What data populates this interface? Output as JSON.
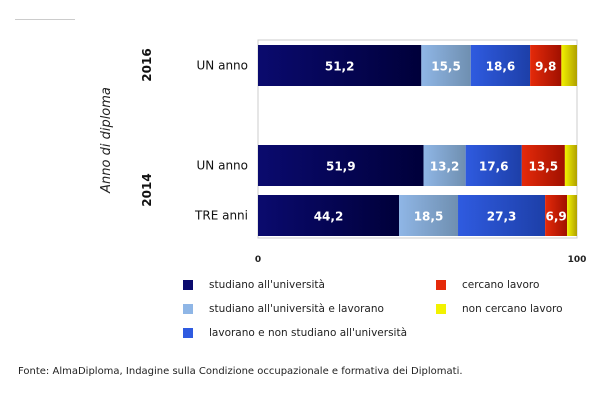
{
  "chart_data": {
    "type": "bar",
    "orientation": "horizontal",
    "stacked": true,
    "ylabel": "Anno di diploma",
    "groups": [
      {
        "year": "2016",
        "categories": [
          "UN anno"
        ]
      },
      {
        "year": "2014",
        "categories": [
          "UN anno",
          "TRE anni"
        ]
      }
    ],
    "categories": [
      "UN anno (2016)",
      "UN anno (2014)",
      "TRE anni (2014)"
    ],
    "category_labels": [
      "UN anno",
      "UN anno",
      "TRE anni"
    ],
    "xlim": [
      0,
      100
    ],
    "xticks": [
      "0",
      "100"
    ],
    "series": [
      {
        "name": "studiano all'università",
        "color": "#0a0a6e",
        "values": [
          51.2,
          51.9,
          44.2
        ],
        "labels": [
          "51,2",
          "51,9",
          "44,2"
        ]
      },
      {
        "name": "studiano all'università e lavorano",
        "color": "#8fb6e6",
        "values": [
          15.5,
          13.2,
          18.5
        ],
        "labels": [
          "15,5",
          "13,2",
          "18,5"
        ]
      },
      {
        "name": "lavorano e non studiano all'università",
        "color": "#2f5be0",
        "values": [
          18.6,
          17.6,
          27.3
        ],
        "labels": [
          "18,6",
          "17,6",
          "27,3"
        ]
      },
      {
        "name": "cercano lavoro",
        "color": "#e52a0a",
        "values": [
          9.8,
          13.5,
          6.9
        ],
        "labels": [
          "9,8",
          "13,5",
          "6,9"
        ]
      },
      {
        "name": "non cercano lavoro",
        "color": "#f2f200",
        "values": [
          4.9,
          3.8,
          3.1
        ],
        "labels": [
          "",
          "",
          ""
        ]
      }
    ],
    "legend_position": "bottom"
  },
  "source": "Fonte: AlmaDiploma, Indagine sulla Condizione occupazionale e formativa dei Diplomati."
}
